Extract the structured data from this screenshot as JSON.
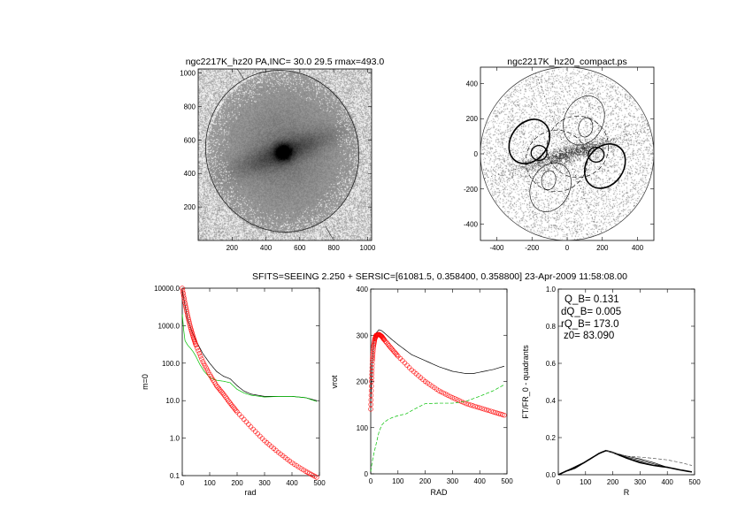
{
  "supertitle": "SFITS=SEEING 2.250 + SERSIC=[61081.5, 0.358400, 0.358800]  23-Apr-2009 11:58:08.00",
  "colors": {
    "total": "#000000",
    "model": "#ff0000",
    "residual": "#00c000",
    "axis": "#000000"
  },
  "chart_data": [
    {
      "type": "image",
      "title": "ngc2217K_hz20 PA,INC= 30.0 29.5 rmax=493.0",
      "xlim": [
        0,
        1024
      ],
      "ylim": [
        0,
        1024
      ],
      "xticks": [
        "200",
        "400",
        "600",
        "800",
        "1000"
      ],
      "yticks": [
        "200",
        "400",
        "600",
        "800",
        "1000"
      ],
      "xtick_values": [
        200,
        400,
        600,
        800,
        1000
      ],
      "ytick_values": [
        200,
        400,
        600,
        800,
        1000
      ]
    },
    {
      "type": "contour",
      "title": "ngc2217K_hz20_compact.ps",
      "xlim": [
        -493,
        493
      ],
      "ylim": [
        -493,
        493
      ],
      "xticks": [
        "-400",
        "-200",
        "0",
        "200",
        "400"
      ],
      "yticks": [
        "-400",
        "-200",
        "0",
        "200",
        "400"
      ],
      "xtick_values": [
        -400,
        -200,
        0,
        200,
        400
      ],
      "ytick_values": [
        -400,
        -200,
        0,
        200,
        400
      ]
    },
    {
      "type": "line",
      "xlabel": "rad",
      "ylabel": "m=0",
      "xlim": [
        0,
        500
      ],
      "ylim": [
        0.1,
        10000
      ],
      "yscale": "log",
      "xticks": [
        "0",
        "100",
        "200",
        "300",
        "400",
        "500"
      ],
      "yticks": [
        "0.1",
        "1.0",
        "10.0",
        "100.0",
        "1000.0",
        "10000.0"
      ],
      "xtick_values": [
        0,
        100,
        200,
        300,
        400,
        500
      ],
      "ytick_values": [
        0.1,
        1,
        10,
        100,
        1000,
        10000
      ],
      "series": [
        {
          "name": "total",
          "color": "#000000",
          "style": "solid",
          "x": [
            0,
            10,
            20,
            35,
            50,
            75,
            100,
            125,
            150,
            175,
            200,
            225,
            250,
            300,
            350,
            400,
            450,
            490
          ],
          "y": [
            9000,
            3500,
            1500,
            700,
            400,
            180,
            100,
            60,
            45,
            38,
            25,
            18,
            15,
            13,
            13,
            13,
            12,
            10
          ]
        },
        {
          "name": "residual",
          "color": "#00c000",
          "style": "solid",
          "x": [
            0,
            5,
            10,
            20,
            30,
            40,
            50,
            65,
            80,
            100,
            125,
            150,
            175,
            200,
            225,
            250,
            300,
            350,
            400,
            450,
            490
          ],
          "y": [
            2000,
            800,
            400,
            300,
            250,
            200,
            150,
            90,
            60,
            42,
            35,
            33,
            30,
            20,
            16,
            14,
            12.5,
            13,
            13,
            12,
            9.5
          ]
        },
        {
          "name": "model",
          "color": "#ff0000",
          "style": "circles",
          "x": [
            0,
            10,
            20,
            30,
            40,
            50,
            75,
            100,
            125,
            150,
            175,
            200,
            250,
            300,
            350,
            400,
            450,
            490
          ],
          "y": [
            10000,
            4000,
            1800,
            900,
            500,
            300,
            110,
            50,
            25,
            15,
            8.5,
            5,
            2,
            0.85,
            0.42,
            0.22,
            0.13,
            0.09
          ]
        }
      ]
    },
    {
      "type": "line",
      "xlabel": "RAD",
      "ylabel": "vrot",
      "xlim": [
        0,
        500
      ],
      "ylim": [
        0,
        400
      ],
      "xticks": [
        "0",
        "100",
        "200",
        "300",
        "400",
        "500"
      ],
      "yticks": [
        "0",
        "100",
        "200",
        "300",
        "400"
      ],
      "xtick_values": [
        0,
        100,
        200,
        300,
        400,
        500
      ],
      "ytick_values": [
        0,
        100,
        200,
        300,
        400
      ],
      "series": [
        {
          "name": "total",
          "color": "#000000",
          "style": "solid",
          "x": [
            0,
            5,
            10,
            20,
            30,
            40,
            50,
            75,
            100,
            150,
            200,
            250,
            300,
            350,
            375,
            400,
            450,
            490
          ],
          "y": [
            150,
            230,
            280,
            305,
            312,
            310,
            305,
            292,
            280,
            258,
            245,
            232,
            222,
            217,
            217,
            220,
            226,
            233
          ]
        },
        {
          "name": "model",
          "color": "#ff0000",
          "style": "circles",
          "x": [
            0,
            3,
            6,
            10,
            15,
            20,
            30,
            40,
            50,
            75,
            100,
            150,
            200,
            250,
            300,
            350,
            400,
            450,
            490
          ],
          "y": [
            140,
            200,
            245,
            275,
            292,
            300,
            302,
            298,
            290,
            272,
            255,
            225,
            200,
            180,
            165,
            152,
            143,
            134,
            127
          ]
        },
        {
          "name": "residual",
          "color": "#00c000",
          "style": "dashed",
          "x": [
            0,
            5,
            10,
            20,
            30,
            40,
            50,
            65,
            80,
            100,
            130,
            160,
            200,
            250,
            300,
            350,
            400,
            450,
            490
          ],
          "y": [
            5,
            25,
            40,
            65,
            90,
            105,
            112,
            118,
            122,
            126,
            130,
            140,
            152,
            153,
            153,
            157,
            168,
            180,
            193
          ]
        }
      ]
    },
    {
      "type": "line",
      "xlabel": "R",
      "ylabel": "FT/FR_0 - quadrants",
      "xlim": [
        0,
        500
      ],
      "ylim": [
        0,
        1
      ],
      "xticks": [
        "0",
        "100",
        "200",
        "300",
        "400",
        "500"
      ],
      "yticks": [
        "0.0",
        "0.2",
        "0.4",
        "0.6",
        "0.8",
        "1.0"
      ],
      "xtick_values": [
        0,
        100,
        200,
        300,
        400,
        500
      ],
      "ytick_values": [
        0,
        0.2,
        0.4,
        0.6,
        0.8,
        1
      ],
      "annotations": [
        "Q_B=  0.131",
        "dQ_B=  0.005",
        "rQ_B=  173.0",
        "z0= 83.090"
      ],
      "series": [
        {
          "name": "mean",
          "color": "#000000",
          "style": "thick",
          "x": [
            0,
            30,
            60,
            100,
            150,
            175,
            200,
            250,
            300,
            350,
            400,
            450,
            490
          ],
          "y": [
            0,
            0.02,
            0.035,
            0.07,
            0.115,
            0.13,
            0.12,
            0.09,
            0.065,
            0.05,
            0.04,
            0.025,
            0.015
          ]
        },
        {
          "name": "quadrant-1",
          "color": "#000000",
          "style": "solid",
          "x": [
            0,
            100,
            150,
            175,
            200,
            250,
            300,
            350,
            400
          ],
          "y": [
            0,
            0.07,
            0.115,
            0.13,
            0.12,
            0.1,
            0.085,
            0.065,
            0.04
          ]
        },
        {
          "name": "quadrant-2",
          "color": "#000000",
          "style": "solid",
          "x": [
            0,
            100,
            150,
            175,
            200,
            250,
            300,
            350,
            400
          ],
          "y": [
            0,
            0.07,
            0.115,
            0.13,
            0.12,
            0.095,
            0.077,
            0.058,
            0.04
          ]
        },
        {
          "name": "quadrant-3",
          "color": "#000000",
          "style": "solid",
          "x": [
            0,
            100,
            150,
            175,
            200,
            250,
            300,
            350,
            400
          ],
          "y": [
            0,
            0.07,
            0.115,
            0.13,
            0.12,
            0.09,
            0.07,
            0.05,
            0.04
          ]
        },
        {
          "name": "dashed",
          "color": "#555555",
          "style": "dashed",
          "x": [
            175,
            200,
            250,
            300,
            350,
            400,
            450,
            490
          ],
          "y": [
            0.13,
            0.12,
            0.1,
            0.095,
            0.088,
            0.08,
            0.065,
            0.05
          ]
        }
      ]
    }
  ]
}
